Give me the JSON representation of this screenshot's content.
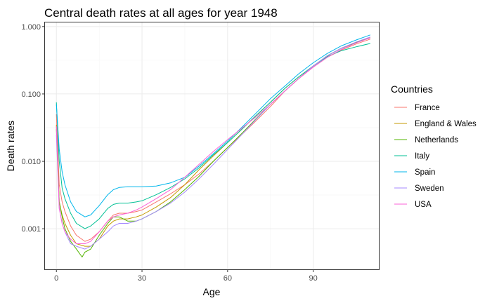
{
  "chart_data": {
    "type": "line",
    "title": "Central death rates at all ages for year 1948",
    "xlabel": "Age",
    "ylabel": "Death rates",
    "x_scale": "linear",
    "y_scale": "log10",
    "xlim": [
      -4,
      113
    ],
    "ylim": [
      0.00025,
      1.15
    ],
    "x_ticks": [
      0,
      30,
      60,
      90
    ],
    "x_tick_labels": [
      "0",
      "30",
      "60",
      "90"
    ],
    "y_ticks": [
      0.001,
      0.01,
      0.1,
      1
    ],
    "y_tick_labels": [
      "0.001",
      "0.010",
      "0.100",
      "1.000"
    ],
    "grid": true,
    "legend": {
      "title": "Countries",
      "position": "right"
    },
    "colors": [
      "#F8766D",
      "#C49A00",
      "#53B400",
      "#00C094",
      "#00B6EB",
      "#A58AFF",
      "#FB61D7"
    ],
    "series": [
      {
        "name": "France",
        "x": [
          0,
          1,
          2,
          3,
          5,
          7,
          10,
          12,
          15,
          18,
          20,
          22,
          25,
          28,
          30,
          35,
          40,
          45,
          50,
          55,
          60,
          65,
          70,
          75,
          80,
          85,
          90,
          95,
          100,
          105,
          110
        ],
        "y": [
          0.05,
          0.0045,
          0.0025,
          0.0018,
          0.0011,
          0.0008,
          0.00065,
          0.0007,
          0.0009,
          0.0013,
          0.0016,
          0.0017,
          0.0017,
          0.0018,
          0.0019,
          0.0025,
          0.0033,
          0.0045,
          0.0065,
          0.01,
          0.016,
          0.025,
          0.04,
          0.065,
          0.11,
          0.17,
          0.25,
          0.35,
          0.45,
          0.55,
          0.65
        ]
      },
      {
        "name": "England & Wales",
        "x": [
          0,
          1,
          2,
          3,
          5,
          7,
          10,
          12,
          15,
          18,
          20,
          22,
          25,
          28,
          30,
          35,
          40,
          45,
          50,
          55,
          60,
          65,
          70,
          75,
          80,
          85,
          90,
          95,
          100,
          105,
          110
        ],
        "y": [
          0.035,
          0.0025,
          0.0016,
          0.0012,
          0.0008,
          0.0006,
          0.00055,
          0.00055,
          0.0007,
          0.0011,
          0.0013,
          0.0014,
          0.0014,
          0.0015,
          0.0016,
          0.0021,
          0.0029,
          0.0045,
          0.0075,
          0.012,
          0.019,
          0.03,
          0.048,
          0.075,
          0.12,
          0.18,
          0.26,
          0.37,
          0.48,
          0.58,
          0.68
        ]
      },
      {
        "name": "Netherlands",
        "x": [
          0,
          1,
          2,
          3,
          5,
          7,
          9,
          10,
          12,
          15,
          18,
          20,
          22,
          25,
          28,
          30,
          35,
          40,
          45,
          50,
          55,
          60,
          65,
          70,
          75,
          80,
          85,
          90,
          95,
          100,
          105,
          110
        ],
        "y": [
          0.03,
          0.0025,
          0.0015,
          0.001,
          0.00065,
          0.0005,
          0.00038,
          0.00045,
          0.0005,
          0.0008,
          0.0012,
          0.0015,
          0.0015,
          0.0013,
          0.0013,
          0.0014,
          0.0018,
          0.0025,
          0.0038,
          0.006,
          0.01,
          0.016,
          0.026,
          0.043,
          0.07,
          0.11,
          0.17,
          0.26,
          0.37,
          0.48,
          0.58,
          0.68
        ]
      },
      {
        "name": "Italy",
        "x": [
          0,
          1,
          2,
          3,
          5,
          7,
          10,
          12,
          15,
          18,
          20,
          22,
          25,
          28,
          30,
          35,
          40,
          45,
          50,
          55,
          60,
          65,
          70,
          75,
          80,
          85,
          90,
          95,
          100,
          105,
          110
        ],
        "y": [
          0.075,
          0.01,
          0.004,
          0.0028,
          0.0017,
          0.0012,
          0.001,
          0.0011,
          0.0014,
          0.002,
          0.0023,
          0.0024,
          0.0024,
          0.0025,
          0.0026,
          0.0032,
          0.0041,
          0.0055,
          0.008,
          0.0125,
          0.019,
          0.03,
          0.048,
          0.075,
          0.12,
          0.18,
          0.26,
          0.36,
          0.44,
          0.5,
          0.56
        ]
      },
      {
        "name": "Spain",
        "x": [
          0,
          1,
          2,
          3,
          5,
          7,
          10,
          12,
          15,
          18,
          20,
          22,
          25,
          28,
          30,
          35,
          40,
          45,
          50,
          55,
          60,
          65,
          70,
          75,
          80,
          85,
          90,
          95,
          100,
          105,
          110
        ],
        "y": [
          0.07,
          0.015,
          0.007,
          0.0045,
          0.0025,
          0.0018,
          0.0015,
          0.0016,
          0.0022,
          0.0032,
          0.0038,
          0.0041,
          0.0042,
          0.0042,
          0.0042,
          0.0043,
          0.0048,
          0.0058,
          0.0085,
          0.013,
          0.02,
          0.032,
          0.052,
          0.085,
          0.13,
          0.2,
          0.29,
          0.4,
          0.52,
          0.63,
          0.75
        ]
      },
      {
        "name": "Sweden",
        "x": [
          0,
          1,
          2,
          3,
          5,
          7,
          10,
          12,
          15,
          18,
          20,
          22,
          25,
          28,
          30,
          35,
          40,
          45,
          50,
          55,
          60,
          65,
          70,
          75,
          80,
          85,
          90,
          95,
          100,
          105,
          110
        ],
        "y": [
          0.025,
          0.002,
          0.0012,
          0.0009,
          0.0006,
          0.00055,
          0.0005,
          0.00055,
          0.0007,
          0.0009,
          0.0011,
          0.0012,
          0.0012,
          0.0013,
          0.0014,
          0.0018,
          0.0024,
          0.0035,
          0.0055,
          0.009,
          0.015,
          0.025,
          0.042,
          0.07,
          0.11,
          0.17,
          0.26,
          0.37,
          0.48,
          0.59,
          0.7
        ]
      },
      {
        "name": "USA",
        "x": [
          0,
          1,
          2,
          3,
          5,
          7,
          10,
          12,
          15,
          18,
          20,
          22,
          25,
          28,
          30,
          35,
          40,
          45,
          50,
          55,
          60,
          65,
          70,
          75,
          80,
          85,
          90,
          95,
          100,
          105,
          110
        ],
        "y": [
          0.033,
          0.002,
          0.0012,
          0.0009,
          0.0007,
          0.0006,
          0.0006,
          0.00065,
          0.0009,
          0.0013,
          0.0015,
          0.0016,
          0.0017,
          0.0019,
          0.0021,
          0.0028,
          0.0038,
          0.0058,
          0.009,
          0.014,
          0.021,
          0.031,
          0.046,
          0.07,
          0.11,
          0.17,
          0.25,
          0.35,
          0.46,
          0.57,
          0.68
        ]
      }
    ]
  }
}
